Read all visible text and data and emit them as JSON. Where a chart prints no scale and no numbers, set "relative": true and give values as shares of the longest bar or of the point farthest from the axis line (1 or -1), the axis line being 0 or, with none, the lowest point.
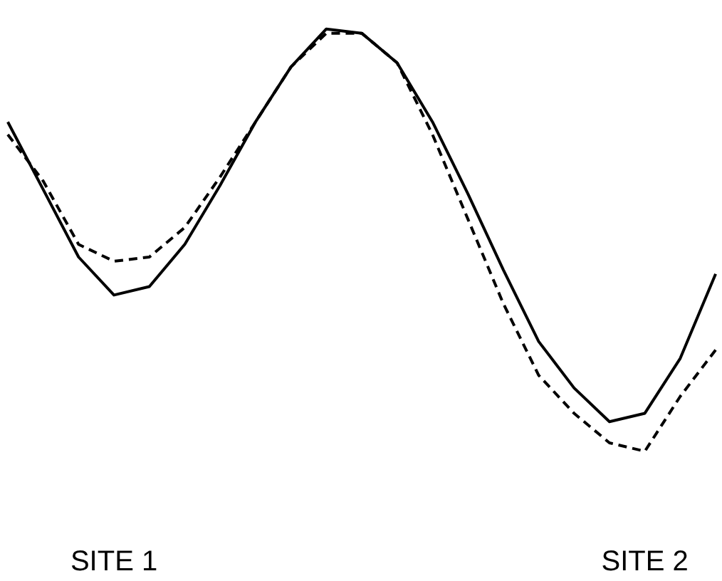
{
  "chart_data": {
    "type": "line",
    "relative": true,
    "categories": [
      null,
      null,
      null,
      "SITE 1",
      null,
      null,
      null,
      null,
      null,
      null,
      null,
      null,
      null,
      null,
      null,
      null,
      null,
      null,
      "SITE 2",
      null,
      null
    ],
    "series": [
      {
        "color": "#000000",
        "line_style": "solid",
        "values": [
          0.78,
          0.62,
          0.46,
          0.37,
          0.39,
          0.49,
          0.63,
          0.78,
          0.91,
          1.0,
          0.99,
          0.92,
          0.78,
          0.61,
          0.43,
          0.26,
          0.15,
          0.07,
          0.09,
          0.22,
          0.42
        ]
      },
      {
        "color": "#000000",
        "line_style": "dashed",
        "values": [
          0.75,
          0.64,
          0.49,
          0.45,
          0.46,
          0.53,
          0.65,
          0.78,
          0.91,
          0.99,
          0.99,
          0.92,
          0.75,
          0.55,
          0.35,
          0.18,
          0.09,
          0.02,
          0.0,
          0.13,
          0.24
        ]
      }
    ],
    "grid": false,
    "marker": "none"
  }
}
